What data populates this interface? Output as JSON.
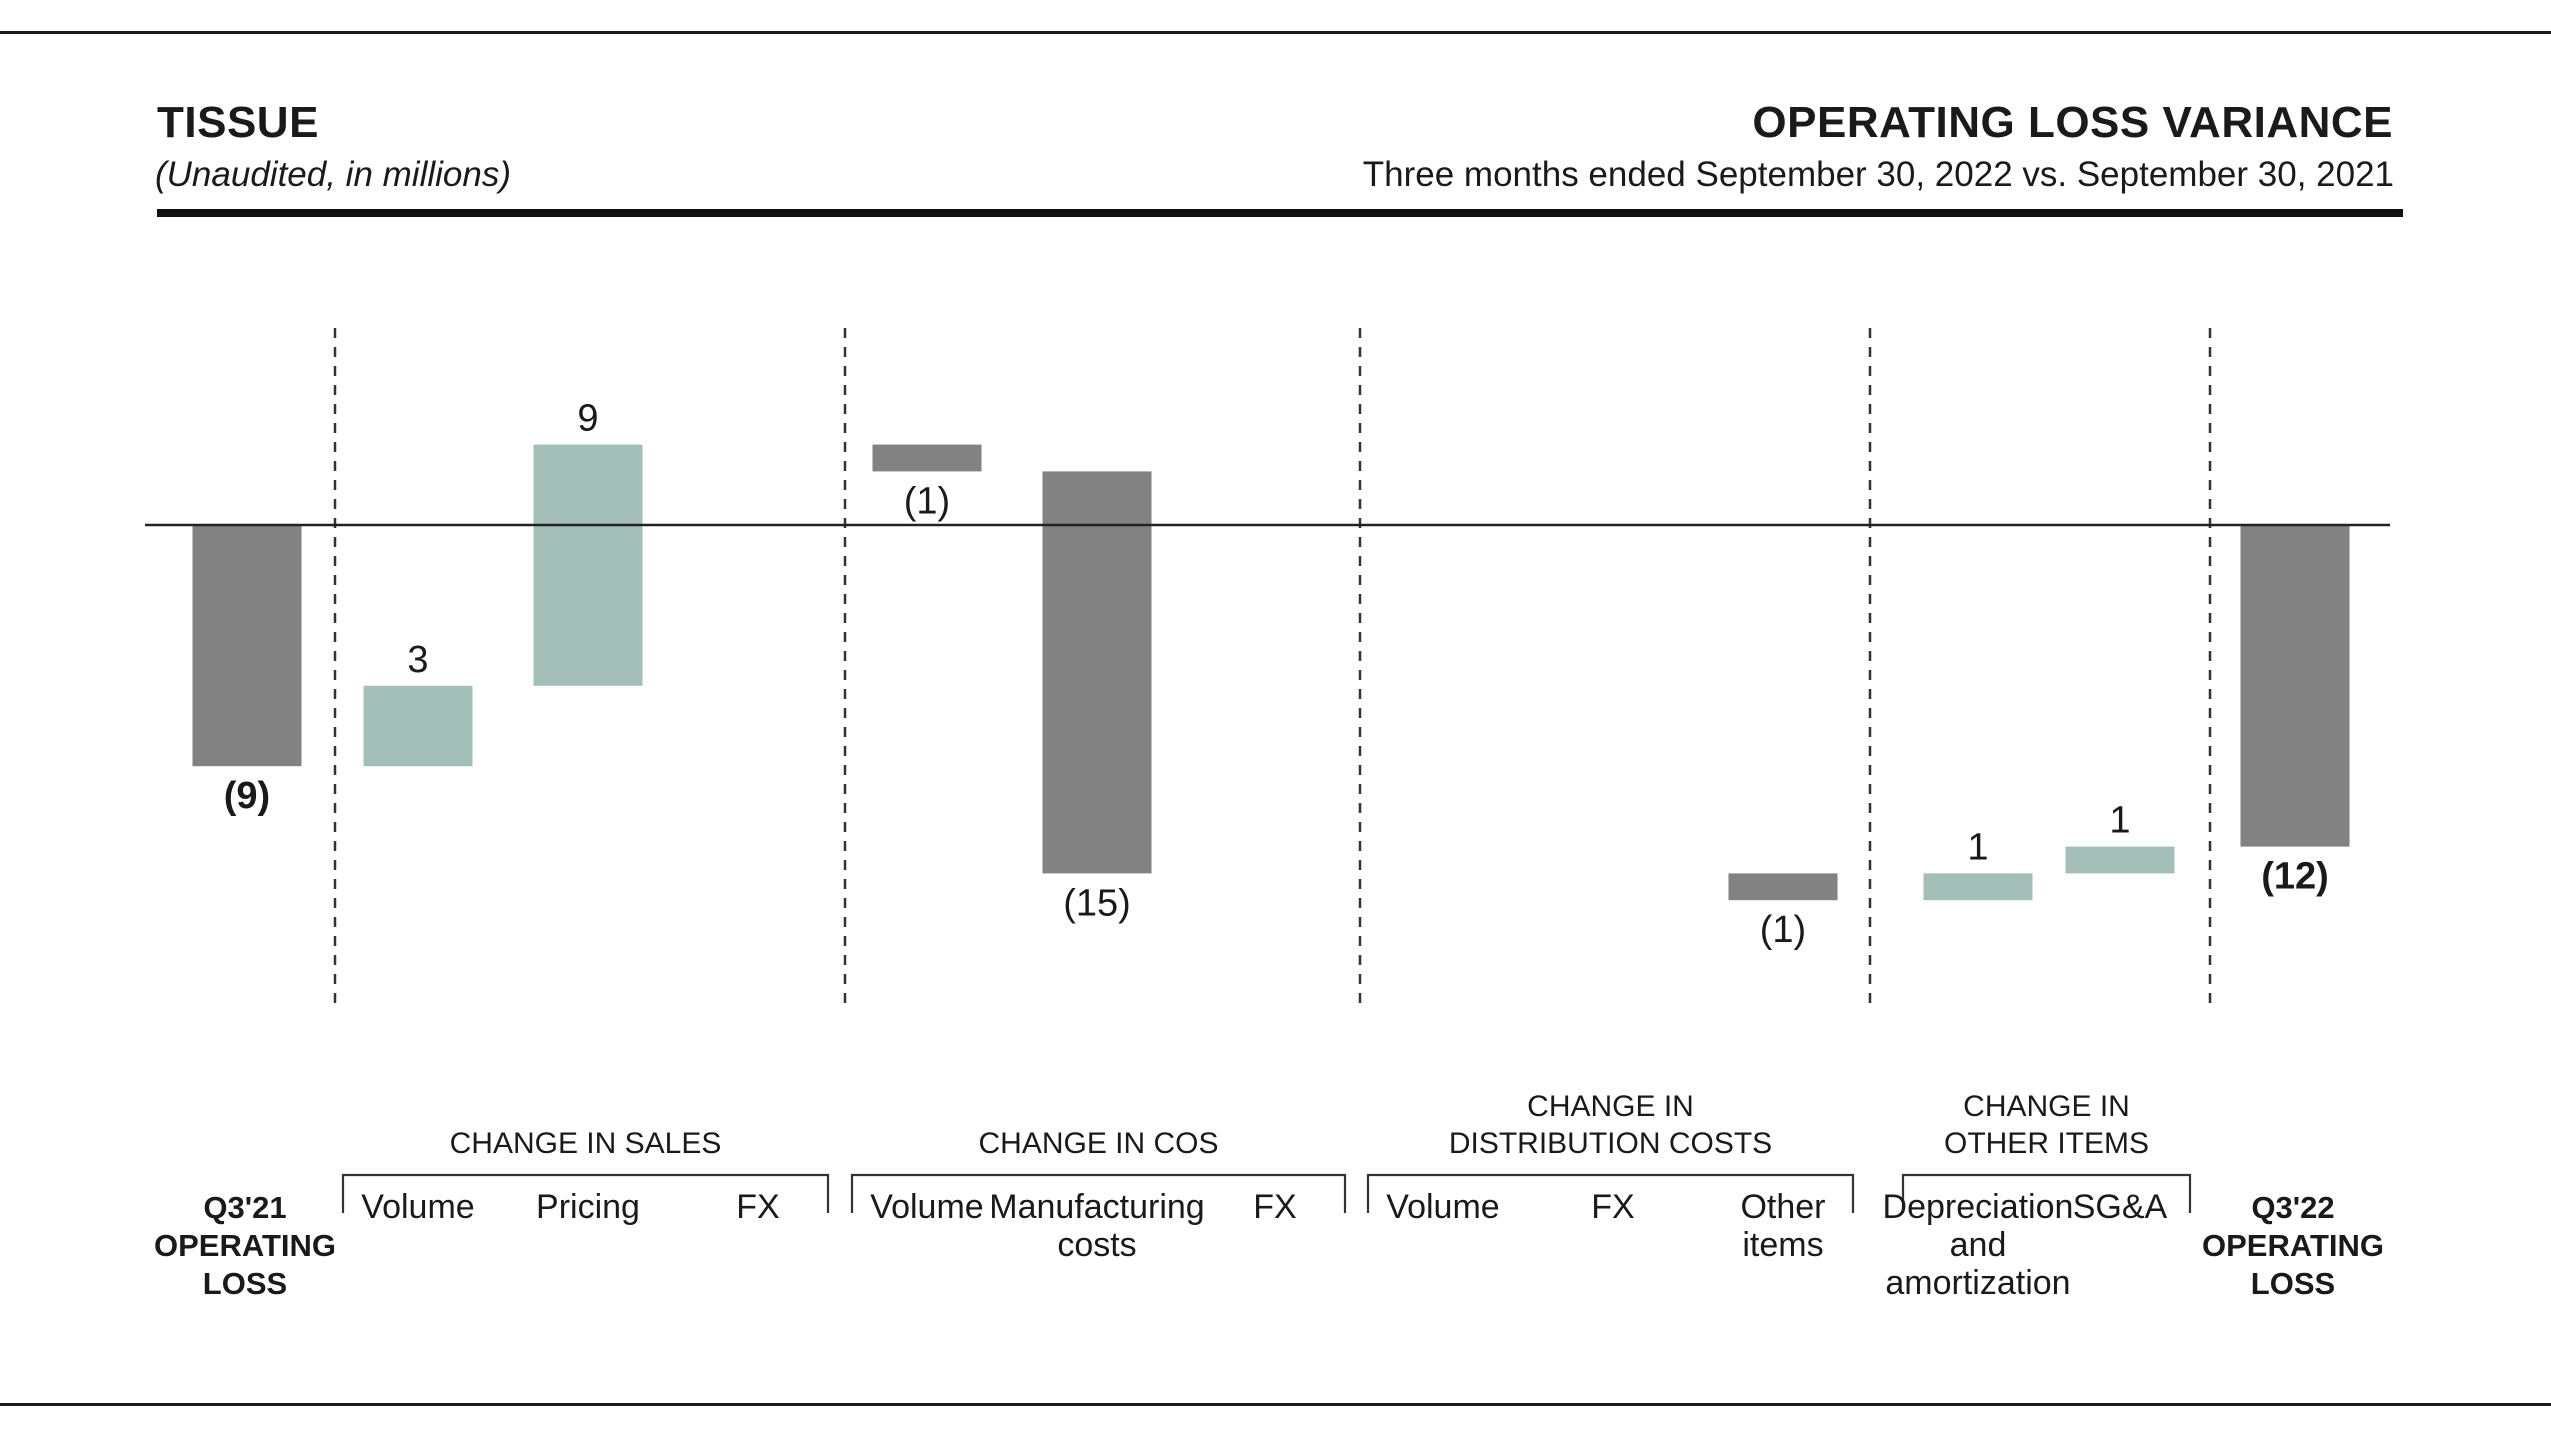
{
  "header": {
    "left_title": "TISSUE",
    "left_subtitle": "(Unaudited, in millions)",
    "right_title": "OPERATING LOSS VARIANCE",
    "right_subtitle": "Three months ended September 30, 2022 vs. September 30, 2021"
  },
  "colors": {
    "negative": "#828282",
    "positive": "#a4bfb7",
    "text": "#1a1a1a"
  },
  "chart_data": {
    "type": "bar",
    "subtype": "waterfall",
    "baseline": 0,
    "ylim": [
      -18,
      11
    ],
    "steps": [
      {
        "category": "Q3'21 OPERATING LOSS",
        "kind": "total",
        "value": -9,
        "start": 0,
        "end": -9,
        "label": "(9)",
        "label_bold": true
      },
      {
        "category": "Volume",
        "group": "CHANGE IN SALES",
        "kind": "delta",
        "value": 3,
        "start": -9,
        "end": -6,
        "label": "3"
      },
      {
        "category": "Pricing",
        "group": "CHANGE IN SALES",
        "kind": "delta",
        "value": 9,
        "start": -6,
        "end": 3,
        "label": "9"
      },
      {
        "category": "FX",
        "group": "CHANGE IN SALES",
        "kind": "delta",
        "value": 0,
        "start": 3,
        "end": 3,
        "label": ""
      },
      {
        "category": "Volume",
        "group": "CHANGE IN COS",
        "kind": "delta",
        "value": -1,
        "start": 3,
        "end": 2,
        "label": "(1)"
      },
      {
        "category": "Manufacturing costs",
        "group": "CHANGE IN COS",
        "kind": "delta",
        "value": -15,
        "start": 2,
        "end": -13,
        "label": "(15)"
      },
      {
        "category": "FX",
        "group": "CHANGE IN COS",
        "kind": "delta",
        "value": 0,
        "start": -13,
        "end": -13,
        "label": ""
      },
      {
        "category": "Volume",
        "group": "CHANGE IN DISTRIBUTION COSTS",
        "kind": "delta",
        "value": 0,
        "start": -13,
        "end": -13,
        "label": ""
      },
      {
        "category": "FX",
        "group": "CHANGE IN DISTRIBUTION COSTS",
        "kind": "delta",
        "value": 0,
        "start": -13,
        "end": -13,
        "label": ""
      },
      {
        "category": "Other items",
        "group": "CHANGE IN DISTRIBUTION COSTS",
        "kind": "delta",
        "value": -1,
        "start": -13,
        "end": -14,
        "label": "(1)"
      },
      {
        "category": "Depreciation and amortization",
        "group": "CHANGE IN OTHER ITEMS",
        "kind": "delta",
        "value": 1,
        "start": -14,
        "end": -13,
        "label": "1"
      },
      {
        "category": "SG&A",
        "group": "CHANGE IN OTHER ITEMS",
        "kind": "delta",
        "value": 1,
        "start": -13,
        "end": -12,
        "label": "1"
      },
      {
        "category": "Q3'22 OPERATING LOSS",
        "kind": "total",
        "value": -12,
        "start": 0,
        "end": -12,
        "label": "(12)",
        "label_bold": true
      }
    ],
    "category_labels": [
      [
        "Q3'21",
        "OPERATING",
        "LOSS"
      ],
      [
        "Volume"
      ],
      [
        "Pricing"
      ],
      [
        "FX"
      ],
      [
        "Volume"
      ],
      [
        "Manufacturing",
        "costs"
      ],
      [
        "FX"
      ],
      [
        "Volume"
      ],
      [
        "FX"
      ],
      [
        "Other",
        "items"
      ],
      [
        "Depreciation",
        "and",
        "amortization"
      ],
      [
        "SG&A"
      ],
      [
        "Q3'22",
        "OPERATING",
        "LOSS"
      ]
    ],
    "groups": [
      {
        "name": [
          "CHANGE IN SALES"
        ],
        "first": 1,
        "last": 3
      },
      {
        "name": [
          "CHANGE IN COS"
        ],
        "first": 4,
        "last": 6
      },
      {
        "name": [
          "CHANGE IN",
          "DISTRIBUTION COSTS"
        ],
        "first": 7,
        "last": 9
      },
      {
        "name": [
          "CHANGE IN",
          "OTHER ITEMS"
        ],
        "first": 10,
        "last": 11
      }
    ]
  }
}
